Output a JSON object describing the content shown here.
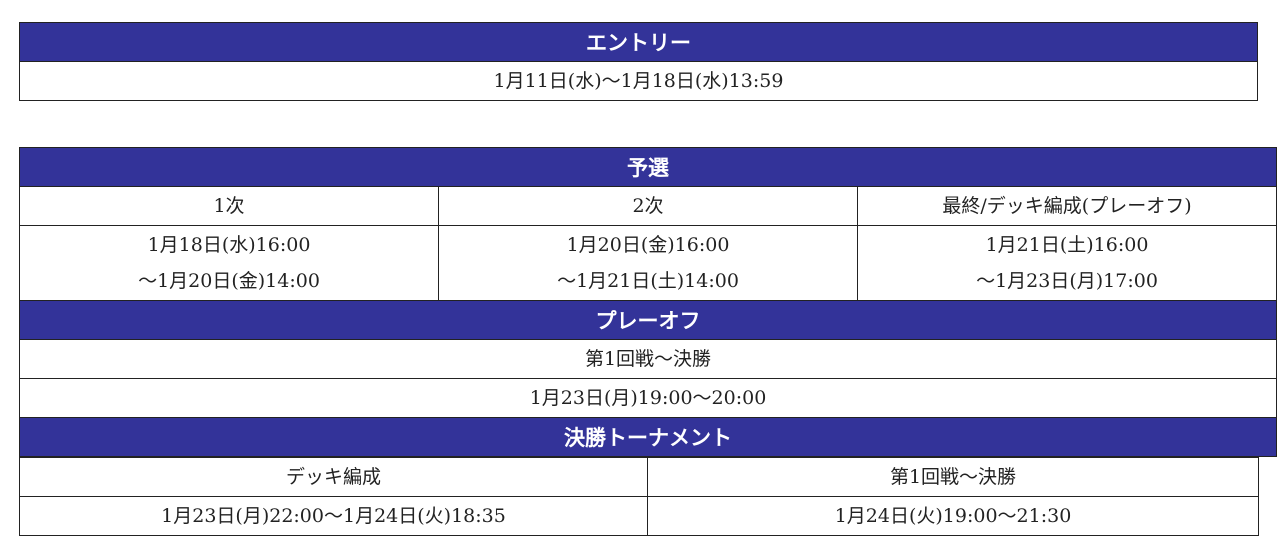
{
  "entry": {
    "header": "エントリー",
    "period": "1月11日(水)〜1月18日(水)13:59"
  },
  "qualifiers": {
    "header": "予選",
    "rounds": [
      {
        "label": "1次",
        "start": "1月18日(水)16:00",
        "end": "〜1月20日(金)14:00"
      },
      {
        "label": "2次",
        "start": "1月20日(金)16:00",
        "end": "〜1月21日(土)14:00"
      },
      {
        "label": "最終/デッキ編成(プレーオフ)",
        "start": "1月21日(土)16:00",
        "end": "〜1月23日(月)17:00"
      }
    ]
  },
  "playoff": {
    "header": "プレーオフ",
    "label": "第1回戦〜決勝",
    "period": "1月23日(月)19:00〜20:00"
  },
  "final": {
    "header": "決勝トーナメント",
    "columns": [
      {
        "label": "デッキ編成",
        "period": "1月23日(月)22:00〜1月24日(火)18:35"
      },
      {
        "label": "第1回戦〜決勝",
        "period": "1月24日(火)19:00〜21:30"
      }
    ]
  },
  "colors": {
    "header_bg": "#333399"
  }
}
